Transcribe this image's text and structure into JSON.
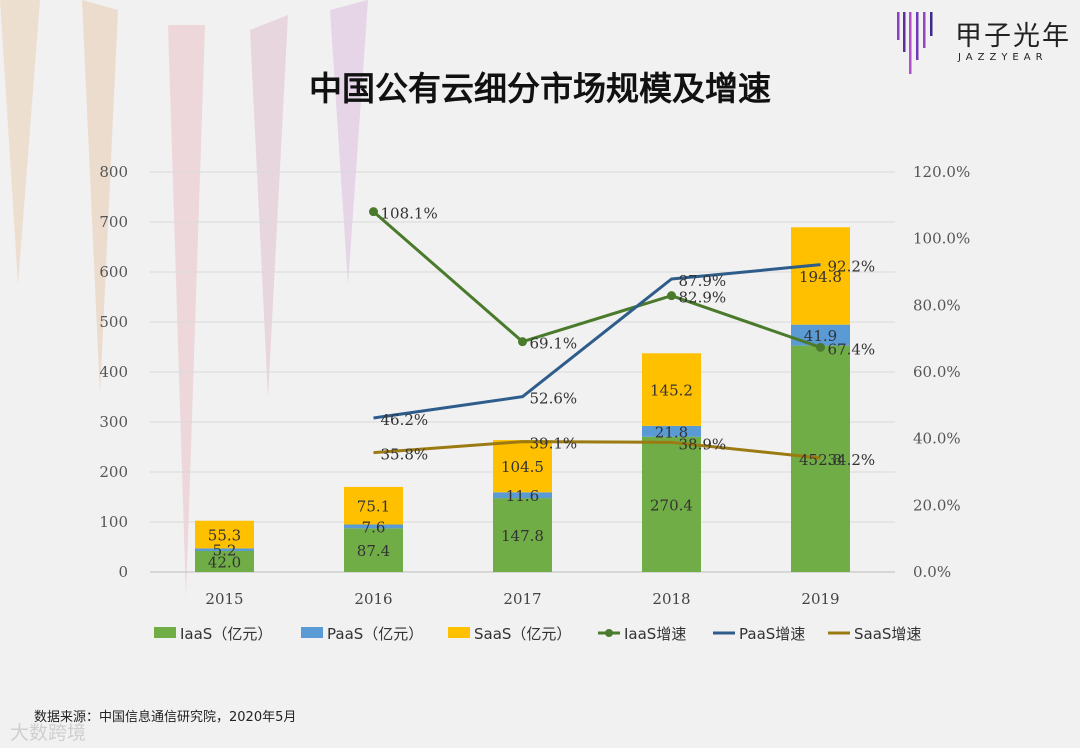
{
  "brand": {
    "name": "甲子光年",
    "name_en": "JAZZYEAR",
    "colors": [
      "#8a3fc4",
      "#5a2f9a",
      "#b04fc9",
      "#6e3ab8",
      "#9245c0",
      "#3f2a8a"
    ]
  },
  "source_text": "数据来源：中国信息通信研究院，2020年5月",
  "watermark": "大数跨境",
  "chart_data": {
    "type": "bar+line",
    "title": "中国公有云细分市场规模及增速",
    "categories": [
      "2015",
      "2016",
      "2017",
      "2018",
      "2019"
    ],
    "y_left": {
      "min": 0,
      "max": 800,
      "ticks": [
        "0",
        "100",
        "200",
        "300",
        "400",
        "500",
        "600",
        "700",
        "800"
      ]
    },
    "y_right": {
      "min": 0,
      "max": 1.2,
      "ticks": [
        "0.0%",
        "20.0%",
        "40.0%",
        "60.0%",
        "80.0%",
        "100.0%",
        "120.0%"
      ]
    },
    "grid": true,
    "legend_position": "bottom",
    "bar_series": [
      {
        "name": "IaaS（亿元）",
        "color": "#71ad47",
        "values": [
          42.0,
          87.4,
          147.8,
          270.4,
          452.8
        ],
        "labels": [
          "42.0",
          "87.4",
          "147.8",
          "270.4",
          "452.8"
        ]
      },
      {
        "name": "PaaS（亿元）",
        "color": "#5b9bd5",
        "values": [
          5.2,
          7.6,
          11.6,
          21.8,
          41.9
        ],
        "labels": [
          "5.2",
          "7.6",
          "11.6",
          "21.8",
          "41.9"
        ]
      },
      {
        "name": "SaaS（亿元）",
        "color": "#ffc000",
        "values": [
          55.3,
          75.1,
          104.5,
          145.2,
          194.8
        ],
        "labels": [
          "55.3",
          "75.1",
          "104.5",
          "145.2",
          "194.8"
        ]
      }
    ],
    "line_series": [
      {
        "name": "IaaS增速",
        "color": "#4a7a2c",
        "marker": true,
        "values": [
          null,
          1.081,
          0.691,
          0.829,
          0.674
        ],
        "labels": [
          null,
          "108.1%",
          "69.1%",
          "82.9%",
          "67.4%"
        ]
      },
      {
        "name": "PaaS增速",
        "color": "#2e5d8c",
        "marker": false,
        "values": [
          null,
          0.462,
          0.526,
          0.879,
          0.922
        ],
        "labels": [
          null,
          "46.2%",
          "52.6%",
          "87.9%",
          "92.2%"
        ]
      },
      {
        "name": "SaaS增速",
        "color": "#9c7a12",
        "marker": false,
        "values": [
          null,
          0.358,
          0.391,
          0.389,
          0.342
        ],
        "labels": [
          null,
          "35.8%",
          "39.1%",
          "38.9%",
          "34.2%"
        ]
      }
    ]
  }
}
